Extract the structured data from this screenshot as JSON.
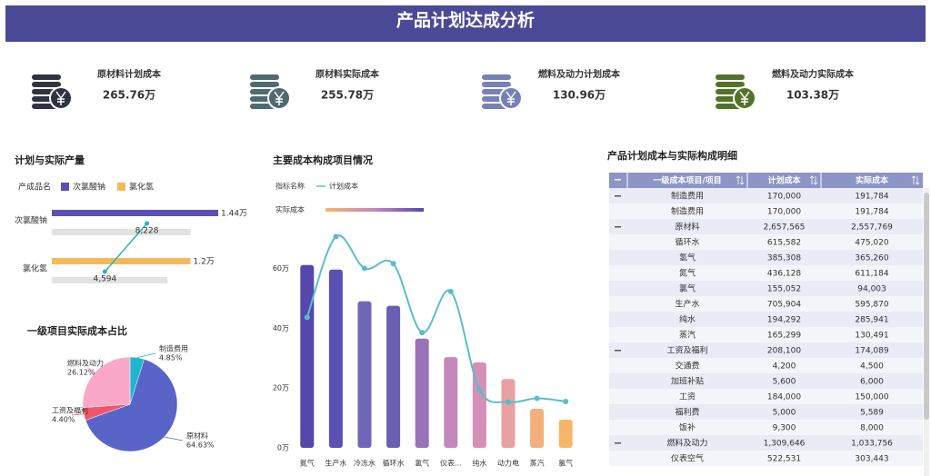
{
  "header": {
    "title": "产品计划达成分析"
  },
  "kpis": [
    {
      "label": "原材料计划成本",
      "value": "265.76万",
      "color": "#2f3440"
    },
    {
      "label": "原材料实际成本",
      "value": "255.78万",
      "color": "#4f6b70"
    },
    {
      "label": "燃料及动力计划成本",
      "value": "130.96万",
      "color": "#7880b8"
    },
    {
      "label": "燃料及动力实际成本",
      "value": "103.38万",
      "color": "#55722a"
    }
  ],
  "chart_data": [
    {
      "type": "bar",
      "orientation": "horizontal",
      "title": "计划与实际产量",
      "legend_title": "产成品名",
      "categories": [
        "次氯酸钠",
        "氯化氢"
      ],
      "series": [
        {
          "name": "次氯酸钠",
          "color": "#5b4fb5",
          "values": [
            14400,
            null
          ],
          "value_labels": [
            "1.44万",
            null
          ]
        },
        {
          "name": "氯化氢",
          "color": "#f5b95a",
          "values": [
            null,
            12000
          ],
          "value_labels": [
            null,
            "1.2万"
          ]
        },
        {
          "color": "#e2e2e2",
          "values": [
            12000,
            10000
          ]
        },
        {
          "type": "line",
          "color": "#2bb3b8",
          "values": [
            8228,
            4594
          ],
          "value_labels": [
            "8,228",
            "4,594"
          ]
        }
      ]
    },
    {
      "type": "pie",
      "title": "一级项目实际成本占比",
      "categories": [
        "制造费用",
        "原材料",
        "工资及福利",
        "燃料及动力"
      ],
      "values": [
        4.85,
        64.63,
        4.4,
        26.12
      ],
      "value_labels": [
        "4.85%",
        "64.63%",
        "4.40%",
        "26.12%"
      ],
      "colors": [
        "#1fb5cf",
        "#5864c8",
        "#f0566b",
        "#f9a8c9"
      ]
    },
    {
      "type": "bar",
      "title": "主要成本构成项目情况",
      "legend_title": "指标名称",
      "categories": [
        "氮气",
        "生产水",
        "冷冻水",
        "循环水",
        "氢气",
        "仪表...",
        "纯水",
        "动力电",
        "蒸汽",
        "氯气"
      ],
      "ylim": [
        0,
        75
      ],
      "yticks": [
        {
          "value": 0,
          "label": "0万"
        },
        {
          "value": 20,
          "label": "20万"
        },
        {
          "value": 40,
          "label": "40万"
        },
        {
          "value": 60,
          "label": "60万"
        }
      ],
      "series": [
        {
          "name": "实际成本",
          "colors": [
            "#5647ad",
            "#5c50b4",
            "#7066b8",
            "#6b5fb2",
            "#9a72b8",
            "#c488bc",
            "#d68fb6",
            "#e8a1a0",
            "#f2b07c",
            "#f6b66a"
          ],
          "values": [
            61.12,
            59.59,
            49,
            47.5,
            36.53,
            30.34,
            28.59,
            23,
            13.05,
            9.4
          ]
        },
        {
          "name": "计划成本",
          "type": "line",
          "color": "#5bbccc",
          "smooth": true,
          "values": [
            43.61,
            70.59,
            60,
            61.56,
            38.53,
            52.25,
            19.43,
            15.3,
            16.53,
            15.5
          ]
        }
      ]
    }
  ],
  "table": {
    "title": "产品计划成本与实际构成明细",
    "columns": [
      "一级成本项目/项目",
      "计划成本",
      "实际成本"
    ],
    "rows": [
      {
        "label": "制造费用",
        "plan": "170,000",
        "actual": "191,784",
        "expanded": true
      },
      {
        "label": "制造费用",
        "plan": "170,000",
        "actual": "191,784"
      },
      {
        "label": "原材料",
        "plan": "2,657,565",
        "actual": "2,557,769",
        "expanded": true
      },
      {
        "label": "循环水",
        "plan": "615,582",
        "actual": "475,020"
      },
      {
        "label": "氢气",
        "plan": "385,308",
        "actual": "365,260"
      },
      {
        "label": "氮气",
        "plan": "436,128",
        "actual": "611,184"
      },
      {
        "label": "氯气",
        "plan": "155,052",
        "actual": "94,003"
      },
      {
        "label": "生产水",
        "plan": "705,904",
        "actual": "595,870"
      },
      {
        "label": "纯水",
        "plan": "194,292",
        "actual": "285,941"
      },
      {
        "label": "蒸汽",
        "plan": "165,299",
        "actual": "130,491"
      },
      {
        "label": "工资及福利",
        "plan": "208,100",
        "actual": "174,089",
        "expanded": true
      },
      {
        "label": "交通费",
        "plan": "4,200",
        "actual": "4,500"
      },
      {
        "label": "加班补贴",
        "plan": "5,600",
        "actual": "6,000"
      },
      {
        "label": "工资",
        "plan": "184,000",
        "actual": "150,000"
      },
      {
        "label": "福利费",
        "plan": "5,000",
        "actual": "5,589"
      },
      {
        "label": "饭补",
        "plan": "9,300",
        "actual": "8,000"
      },
      {
        "label": "燃料及动力",
        "plan": "1,309,646",
        "actual": "1,033,756",
        "expanded": true
      },
      {
        "label": "仪表空气",
        "plan": "522,531",
        "actual": "303,443"
      }
    ]
  }
}
